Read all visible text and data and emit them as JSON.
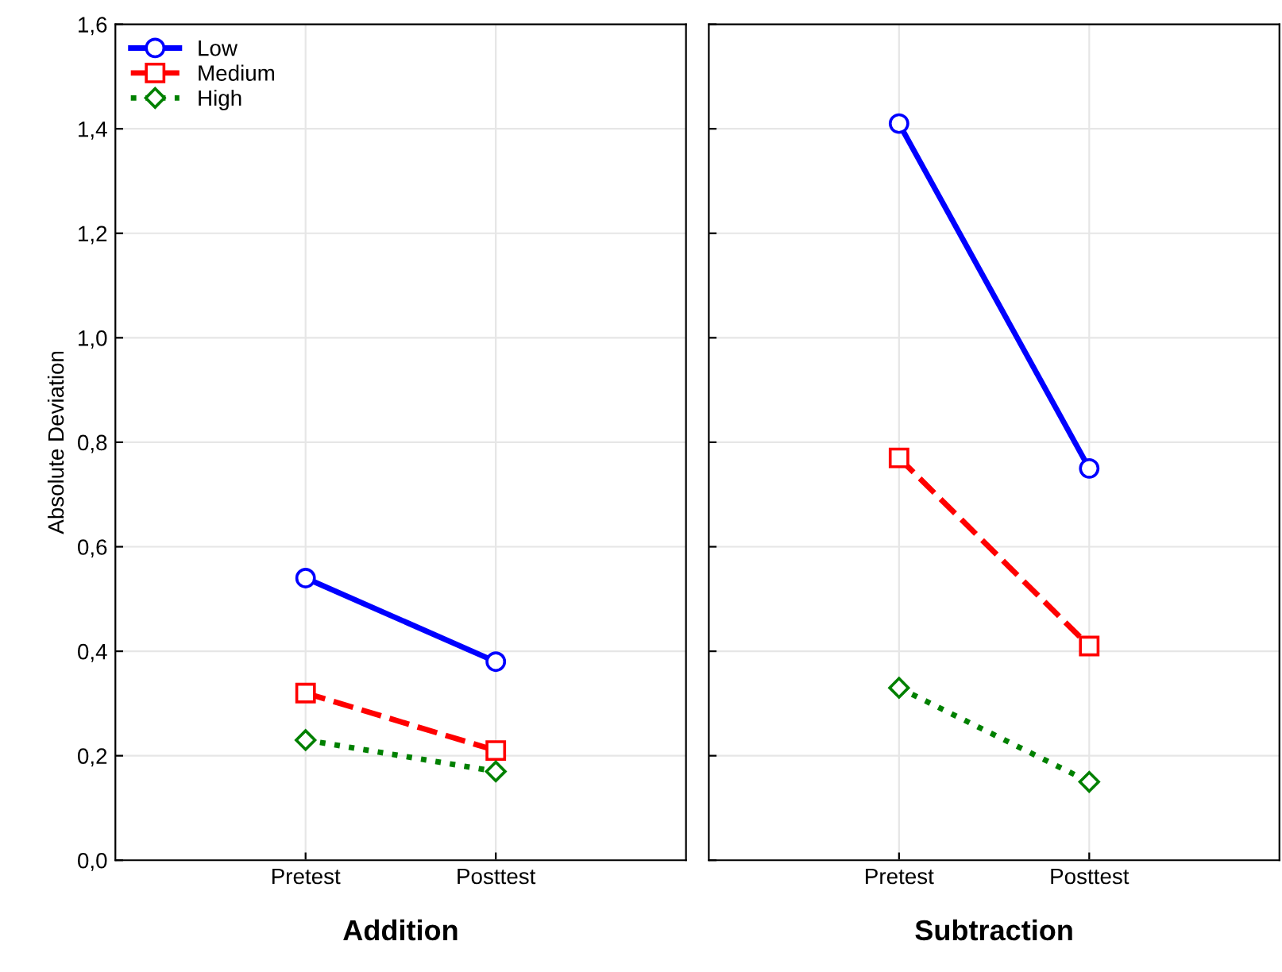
{
  "chart_data": [
    {
      "type": "line",
      "xlabel": "Addition",
      "ylabel": "Absolute Deviation",
      "categories": [
        "Pretest",
        "Posttest"
      ],
      "series": [
        {
          "name": "Low",
          "color": "#0000ff",
          "values": [
            0.54,
            0.38
          ],
          "marker": "circle",
          "line_style": "solid"
        },
        {
          "name": "Medium",
          "color": "#ff0000",
          "values": [
            0.32,
            0.21
          ],
          "marker": "square",
          "line_style": "dashed"
        },
        {
          "name": "High",
          "color": "#008000",
          "values": [
            0.23,
            0.17
          ],
          "marker": "diamond",
          "line_style": "dotted"
        }
      ],
      "ylim": [
        0,
        1.6
      ],
      "yticks": [
        {
          "value": 0,
          "label": "0,0"
        },
        {
          "value": 0.2,
          "label": "0,2"
        },
        {
          "value": 0.4,
          "label": "0,4"
        },
        {
          "value": 0.6,
          "label": "0,6"
        },
        {
          "value": 0.8,
          "label": "0,8"
        },
        {
          "value": 1.0,
          "label": "1,0"
        },
        {
          "value": 1.2,
          "label": "1,2"
        },
        {
          "value": 1.4,
          "label": "1,4"
        },
        {
          "value": 1.6,
          "label": "1,6"
        }
      ],
      "grid": true,
      "legend": "top left"
    },
    {
      "type": "line",
      "xlabel": "Subtraction",
      "categories": [
        "Pretest",
        "Posttest"
      ],
      "series": [
        {
          "color": "#0000ff",
          "values": [
            1.41,
            0.75
          ],
          "marker": "circle",
          "line_style": "solid"
        },
        {
          "color": "#ff0000",
          "values": [
            0.77,
            0.41
          ],
          "marker": "square",
          "line_style": "dashed"
        },
        {
          "color": "#008000",
          "values": [
            0.33,
            0.15
          ],
          "marker": "diamond",
          "line_style": "dotted"
        }
      ],
      "ylim": [
        0,
        1.6
      ],
      "yticks": [
        {
          "value": 0,
          "label": null
        },
        {
          "value": 0.2,
          "label": null
        },
        {
          "value": 0.4,
          "label": null
        },
        {
          "value": 0.6,
          "label": null
        },
        {
          "value": 0.8,
          "label": null
        },
        {
          "value": 1.0,
          "label": null
        },
        {
          "value": 1.2,
          "label": null
        },
        {
          "value": 1.4,
          "label": null
        },
        {
          "value": 1.6,
          "label": null
        }
      ],
      "grid": true,
      "tick_labels": "x"
    }
  ]
}
